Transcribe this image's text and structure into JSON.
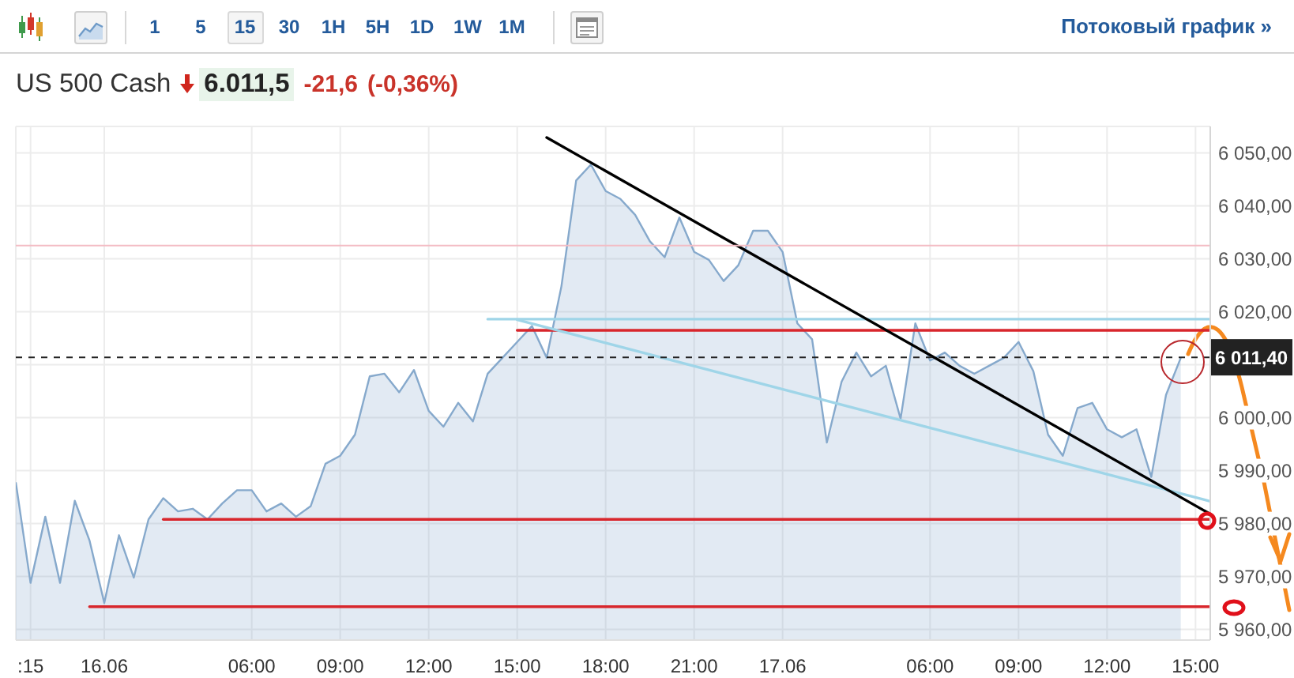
{
  "chart_data": {
    "type": "area",
    "title": "US 500 Cash",
    "annotations": [
      "6.011,5",
      "-21,6",
      "(-0,36%)",
      "1",
      "5",
      "15",
      "30",
      "1H",
      "5H",
      "1D",
      "1W",
      "1M",
      "Потоковый график »"
    ],
    "categories": [
      null,
      ":15",
      null,
      null,
      null,
      null,
      "16.06",
      null,
      null,
      null,
      null,
      null,
      null,
      null,
      null,
      null,
      "06:00",
      null,
      null,
      null,
      null,
      null,
      "09:00",
      null,
      null,
      null,
      null,
      null,
      "12:00",
      null,
      null,
      null,
      null,
      null,
      "15:00",
      null,
      null,
      null,
      null,
      null,
      "18:00",
      null,
      null,
      null,
      null,
      null,
      "21:00",
      null,
      null,
      null,
      null,
      null,
      "17.06",
      null,
      null,
      null,
      null,
      null,
      null,
      null,
      null,
      null,
      "06:00",
      null,
      null,
      null,
      null,
      null,
      "09:00",
      null,
      null,
      null,
      null,
      null,
      "12:00",
      null,
      null,
      null,
      null,
      null,
      "15:00",
      null
    ],
    "series": [
      {
        "color": "#86a9cc",
        "values": [
          5987.8,
          5968.8,
          5981.3,
          5968.8,
          5984.3,
          5976.8,
          5965.0,
          5977.8,
          5969.8,
          5980.8,
          5984.8,
          5982.3,
          5982.8,
          5980.8,
          5983.8,
          5986.3,
          5986.3,
          5982.3,
          5983.8,
          5981.3,
          5983.3,
          5991.3,
          5992.8,
          5996.8,
          6007.8,
          6008.3,
          6004.8,
          6009.0,
          6001.3,
          5998.3,
          6002.8,
          5999.3,
          6008.3,
          6011.3,
          6014.3,
          6017.3,
          6011.3,
          6024.8,
          6044.8,
          6047.8,
          6042.8,
          6041.3,
          6038.3,
          6033.3,
          6030.3,
          6037.8,
          6031.3,
          6029.8,
          6025.8,
          6028.8,
          6035.3,
          6035.3,
          6031.3,
          6017.8,
          6014.8,
          5995.3,
          6006.8,
          6012.3,
          6007.8,
          6009.8,
          5999.8,
          6017.8,
          6010.8,
          6012.3,
          6009.8,
          6008.3,
          6009.8,
          6011.3,
          6014.3,
          6008.8,
          5996.8,
          5992.8,
          6001.8,
          6002.8,
          5997.8,
          5996.3,
          5997.8,
          5988.8,
          6004.3,
          6011.3,
          null,
          null
        ]
      },
      {
        "type": "line",
        "color": "#d8262c",
        "values": [
          null,
          null,
          null,
          null,
          null,
          5964.3,
          null,
          null,
          null,
          null,
          null,
          null,
          null,
          null,
          null,
          null,
          null,
          null,
          null,
          null,
          null,
          null,
          null,
          null,
          null,
          null,
          null,
          null,
          null,
          null,
          null,
          null,
          null,
          null,
          null,
          null,
          null,
          null,
          null,
          null,
          null,
          null,
          null,
          null,
          null,
          null,
          null,
          null,
          null,
          null,
          null,
          null,
          null,
          null,
          null,
          null,
          null,
          null,
          null,
          null,
          null,
          null,
          null,
          null,
          null,
          null,
          null,
          null,
          null,
          null,
          null,
          null,
          null,
          null,
          null,
          null,
          null,
          null,
          null,
          null,
          null,
          5964.3
        ]
      },
      {
        "type": "line",
        "color": "#d8262c",
        "values": [
          null,
          null,
          null,
          null,
          null,
          null,
          null,
          null,
          null,
          null,
          5980.8,
          null,
          null,
          null,
          null,
          null,
          null,
          null,
          null,
          null,
          null,
          null,
          null,
          null,
          null,
          null,
          null,
          null,
          null,
          null,
          null,
          null,
          null,
          null,
          null,
          null,
          null,
          null,
          null,
          null,
          null,
          null,
          null,
          null,
          null,
          null,
          null,
          null,
          null,
          null,
          null,
          null,
          null,
          null,
          null,
          null,
          null,
          null,
          null,
          null,
          null,
          null,
          null,
          null,
          null,
          null,
          null,
          null,
          null,
          null,
          null,
          null,
          null,
          null,
          null,
          null,
          null,
          null,
          null,
          null,
          null,
          5980.8
        ]
      },
      {
        "type": "line",
        "color": "#d8262c",
        "values": [
          null,
          null,
          null,
          null,
          null,
          null,
          null,
          null,
          null,
          null,
          null,
          null,
          null,
          null,
          null,
          null,
          null,
          null,
          null,
          null,
          null,
          null,
          null,
          null,
          null,
          null,
          null,
          null,
          null,
          null,
          null,
          null,
          null,
          null,
          6016.5,
          null,
          null,
          null,
          null,
          null,
          null,
          null,
          null,
          null,
          null,
          null,
          null,
          null,
          null,
          null,
          null,
          null,
          null,
          null,
          null,
          null,
          null,
          null,
          null,
          null,
          null,
          null,
          null,
          null,
          null,
          null,
          null,
          null,
          null,
          null,
          null,
          null,
          null,
          null,
          null,
          null,
          null,
          null,
          null,
          null,
          null,
          6016.5
        ]
      },
      {
        "type": "line",
        "color": "#9fd5e8",
        "values": [
          null,
          null,
          null,
          null,
          null,
          null,
          null,
          null,
          null,
          null,
          null,
          null,
          null,
          null,
          null,
          null,
          null,
          null,
          null,
          null,
          null,
          null,
          null,
          null,
          null,
          null,
          null,
          null,
          null,
          null,
          null,
          null,
          6018.6,
          null,
          null,
          null,
          null,
          null,
          null,
          null,
          null,
          null,
          null,
          null,
          null,
          null,
          null,
          null,
          null,
          null,
          null,
          null,
          null,
          null,
          null,
          null,
          null,
          null,
          null,
          null,
          null,
          null,
          null,
          null,
          null,
          null,
          null,
          null,
          null,
          null,
          null,
          null,
          null,
          null,
          null,
          null,
          null,
          null,
          null,
          null,
          null,
          6018.6
        ]
      },
      {
        "type": "line",
        "color": "#9fd5e8",
        "values": [
          null,
          null,
          null,
          null,
          null,
          null,
          null,
          null,
          null,
          null,
          null,
          null,
          null,
          null,
          null,
          null,
          null,
          null,
          null,
          null,
          null,
          null,
          null,
          null,
          null,
          null,
          null,
          null,
          null,
          null,
          null,
          null,
          null,
          null,
          6018.5,
          null,
          null,
          null,
          null,
          null,
          null,
          null,
          null,
          null,
          null,
          null,
          null,
          null,
          null,
          null,
          null,
          null,
          null,
          null,
          null,
          null,
          null,
          null,
          null,
          null,
          null,
          null,
          null,
          null,
          null,
          null,
          null,
          null,
          null,
          null,
          null,
          null,
          null,
          null,
          null,
          null,
          null,
          null,
          null,
          null,
          null,
          5984.2
        ]
      },
      {
        "type": "line",
        "color": "#000000",
        "values": [
          null,
          null,
          null,
          null,
          null,
          null,
          null,
          null,
          null,
          null,
          null,
          null,
          null,
          null,
          null,
          null,
          null,
          null,
          null,
          null,
          null,
          null,
          null,
          null,
          null,
          null,
          null,
          null,
          null,
          null,
          null,
          null,
          null,
          null,
          null,
          null,
          6052.9,
          null,
          null,
          null,
          null,
          null,
          null,
          null,
          null,
          null,
          null,
          null,
          null,
          null,
          null,
          null,
          null,
          null,
          null,
          null,
          null,
          null,
          null,
          null,
          null,
          null,
          null,
          null,
          null,
          null,
          null,
          null,
          null,
          null,
          null,
          null,
          null,
          null,
          null,
          null,
          null,
          null,
          null,
          null,
          null,
          5981.8
        ]
      }
    ],
    "ylim": [
      5958,
      6055
    ],
    "yticks": [
      {
        "value": 5960,
        "label": "5 960,00"
      },
      {
        "value": 5970,
        "label": "5 970,00"
      },
      {
        "value": 5980,
        "label": "5 980,00"
      },
      {
        "value": 5990,
        "label": "5 990,00"
      },
      {
        "value": 6000,
        "label": "6 000,00"
      },
      {
        "value": 6010,
        "label": null
      },
      {
        "value": 6020,
        "label": "6 020,00"
      },
      {
        "value": 6030,
        "label": "6 030,00"
      },
      {
        "value": 6040,
        "label": "6 040,00"
      },
      {
        "value": 6050,
        "label": "6 050,00"
      }
    ],
    "ref_lines": [
      {
        "axis": "y",
        "value": 6032.5,
        "color": "#f3bcc4"
      },
      {
        "axis": "y",
        "value": 6011.4,
        "label": "6 011,40",
        "color": "#222222",
        "line_style": "dashed"
      }
    ],
    "grid": true
  }
}
